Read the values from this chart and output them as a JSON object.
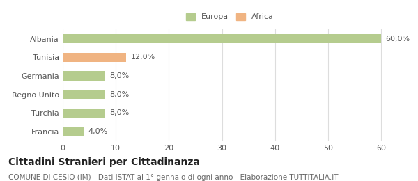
{
  "categories": [
    "Albania",
    "Tunisia",
    "Germania",
    "Regno Unito",
    "Turchia",
    "Francia"
  ],
  "values": [
    60.0,
    12.0,
    8.0,
    8.0,
    8.0,
    4.0
  ],
  "bar_colors": [
    "#b5cc8e",
    "#f0b482",
    "#b5cc8e",
    "#b5cc8e",
    "#b5cc8e",
    "#b5cc8e"
  ],
  "labels": [
    "60,0%",
    "12,0%",
    "8,0%",
    "8,0%",
    "8,0%",
    "4,0%"
  ],
  "legend_entries": [
    {
      "label": "Europa",
      "color": "#b5cc8e"
    },
    {
      "label": "Africa",
      "color": "#f0b482"
    }
  ],
  "xlim": [
    0,
    63
  ],
  "xticks": [
    0,
    10,
    20,
    30,
    40,
    50,
    60
  ],
  "title": "Cittadini Stranieri per Cittadinanza",
  "subtitle": "COMUNE DI CESIO (IM) - Dati ISTAT al 1° gennaio di ogni anno - Elaborazione TUTTITALIA.IT",
  "title_fontsize": 10,
  "subtitle_fontsize": 7.5,
  "label_fontsize": 8,
  "tick_fontsize": 8,
  "background_color": "#ffffff",
  "grid_color": "#dddddd",
  "bar_height": 0.5
}
